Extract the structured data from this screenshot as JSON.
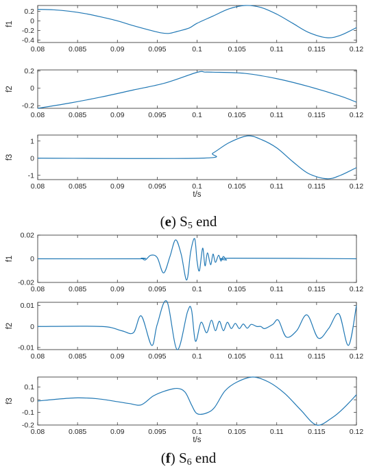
{
  "captions": [
    {
      "prefix": "(",
      "letter": "e",
      "mid": ") S",
      "sub": "5",
      "suffix": " end"
    },
    {
      "prefix": "(",
      "letter": "f",
      "mid": ") S",
      "sub": "6",
      "suffix": " end"
    }
  ],
  "colors": {
    "line": "#1f77b4",
    "axes": "#262626",
    "tick_text": "#262626"
  },
  "chart_data": [
    {
      "type": "line",
      "xlabel": "",
      "ylabel": "f1",
      "xlim": [
        0.08,
        0.12
      ],
      "ylim": [
        -0.45,
        0.32
      ],
      "xticks": [
        "0.08",
        "0.085",
        "0.09",
        "0.095",
        "0.1",
        "0.105",
        "0.11",
        "0.115",
        "0.12"
      ],
      "yticks": [
        "0.2",
        "0",
        "-0.2",
        "-0.4"
      ],
      "series": [
        {
          "x": [
            0.08,
            0.082,
            0.084,
            0.086,
            0.088,
            0.09,
            0.092,
            0.094,
            0.0955,
            0.0965,
            0.0975,
            0.099,
            0.1,
            0.102,
            0.104,
            0.106,
            0.108,
            0.11,
            0.112,
            0.114,
            0.1163,
            0.118,
            0.12
          ],
          "y": [
            0.24,
            0.23,
            0.2,
            0.15,
            0.08,
            0.0,
            -0.1,
            -0.19,
            -0.25,
            -0.26,
            -0.22,
            -0.15,
            -0.05,
            0.1,
            0.25,
            0.32,
            0.28,
            0.14,
            -0.05,
            -0.24,
            -0.35,
            -0.3,
            -0.14
          ]
        }
      ]
    },
    {
      "type": "line",
      "xlabel": "",
      "ylabel": "f2",
      "xlim": [
        0.08,
        0.12
      ],
      "ylim": [
        -0.23,
        0.21
      ],
      "xticks": [
        "0.08",
        "0.085",
        "0.09",
        "0.095",
        "0.1",
        "0.105",
        "0.11",
        "0.115",
        "0.12"
      ],
      "yticks": [
        "0.2",
        "0",
        "-0.2"
      ],
      "series": [
        {
          "x": [
            0.08,
            0.084,
            0.088,
            0.092,
            0.096,
            0.1,
            0.101,
            0.102,
            0.106,
            0.11,
            0.114,
            0.118,
            0.12
          ],
          "y": [
            -0.23,
            -0.17,
            -0.1,
            -0.02,
            0.06,
            0.1825,
            0.185,
            0.184,
            0.17,
            0.11,
            0.02,
            -0.09,
            -0.16
          ]
        }
      ]
    },
    {
      "type": "line",
      "xlabel": "t/s",
      "ylabel": "f3",
      "xlim": [
        0.08,
        0.12
      ],
      "ylim": [
        -1.25,
        1.35
      ],
      "xticks": [
        "0.08",
        "0.085",
        "0.09",
        "0.095",
        "0.1",
        "0.105",
        "0.11",
        "0.115",
        "0.12"
      ],
      "yticks": [
        "1",
        "0",
        "-1"
      ],
      "series": [
        {
          "x": [
            0.08,
            0.1005,
            0.102,
            0.104,
            0.1063,
            0.108,
            0.11,
            0.112,
            0.114,
            0.1163,
            0.118,
            0.12
          ],
          "y": [
            0.0,
            0.0,
            0.3,
            0.9,
            1.3,
            1.1,
            0.6,
            -0.2,
            -0.9,
            -1.2,
            -1.0,
            -0.55
          ]
        }
      ]
    },
    {
      "type": "line",
      "xlabel": "",
      "ylabel": "f1",
      "xlim": [
        0.08,
        0.12
      ],
      "ylim": [
        -0.02,
        0.02
      ],
      "xticks": [
        "0.08",
        "0.085",
        "0.09",
        "0.095",
        "0.1",
        "0.105",
        "0.11",
        "0.115",
        "0.12"
      ],
      "yticks": [
        "0.02",
        "0",
        "-0.02"
      ],
      "series": [
        {
          "x": [
            0.08,
            0.0925,
            0.093,
            0.0935,
            0.0942,
            0.095,
            0.0958,
            0.0966,
            0.0973,
            0.098,
            0.0987,
            0.0992,
            0.0997,
            0.1,
            0.1003,
            0.1007,
            0.101,
            0.1013,
            0.1017,
            0.102,
            0.1023,
            0.1027,
            0.103,
            0.1033,
            0.1037,
            0.1042,
            0.12
          ],
          "y": [
            0.0,
            0.0,
            0.0005,
            -0.001,
            0.003,
            0.001,
            -0.012,
            0.002,
            0.016,
            0.004,
            -0.018,
            0.006,
            0.017,
            -0.002,
            -0.01,
            0.009,
            -0.006,
            0.005,
            -0.005,
            0.004,
            -0.003,
            0.003,
            -0.002,
            0.002,
            -0.001,
            0.0005,
            0.0
          ]
        }
      ]
    },
    {
      "type": "line",
      "xlabel": "",
      "ylabel": "f2",
      "xlim": [
        0.08,
        0.12
      ],
      "ylim": [
        -0.011,
        0.0115
      ],
      "xticks": [
        "0.08",
        "0.085",
        "0.09",
        "0.095",
        "0.1",
        "0.105",
        "0.11",
        "0.115",
        "0.12"
      ],
      "yticks": [
        "0.01",
        "0",
        "-0.01"
      ],
      "series": [
        {
          "x": [
            0.08,
            0.088,
            0.0905,
            0.092,
            0.093,
            0.0943,
            0.095,
            0.0962,
            0.0975,
            0.0988,
            0.0993,
            0.0998,
            0.1005,
            0.1012,
            0.1018,
            0.1023,
            0.1028,
            0.1033,
            0.1038,
            0.1043,
            0.1048,
            0.1053,
            0.1058,
            0.1063,
            0.1068,
            0.1075,
            0.108,
            0.1085,
            0.1095,
            0.1102,
            0.1112,
            0.1125,
            0.1138,
            0.1152,
            0.1165,
            0.1178,
            0.119,
            0.12
          ],
          "y": [
            0.0,
            0.0,
            -0.002,
            -0.003,
            0.005,
            -0.009,
            0.001,
            0.012,
            -0.011,
            0.007,
            0.008,
            -0.007,
            0.002,
            -0.003,
            0.003,
            -0.002,
            0.0025,
            -0.002,
            0.002,
            -0.001,
            0.0015,
            -0.001,
            0.0012,
            -0.0008,
            0.001,
            0.0,
            0.0,
            -0.001,
            0.001,
            0.003,
            -0.005,
            -0.002,
            0.0055,
            -0.0055,
            -0.001,
            0.006,
            -0.009,
            0.01
          ]
        }
      ]
    },
    {
      "type": "line",
      "xlabel": "t/s",
      "ylabel": "f3",
      "xlim": [
        0.08,
        0.12
      ],
      "ylim": [
        -0.2,
        0.18
      ],
      "xticks": [
        "0.08",
        "0.085",
        "0.09",
        "0.095",
        "0.1",
        "0.105",
        "0.11",
        "0.115",
        "0.12"
      ],
      "yticks": [
        "0.1",
        "0",
        "-0.1",
        "-0.2"
      ],
      "series": [
        {
          "x": [
            0.08,
            0.0825,
            0.085,
            0.0875,
            0.09,
            0.0915,
            0.093,
            0.0945,
            0.096,
            0.0975,
            0.0985,
            0.0993,
            0.1,
            0.1012,
            0.1022,
            0.1035,
            0.105,
            0.107,
            0.109,
            0.111,
            0.113,
            0.115,
            0.117,
            0.1185,
            0.12
          ],
          "y": [
            -0.01,
            0.005,
            0.015,
            0.008,
            -0.015,
            -0.03,
            -0.04,
            0.03,
            0.07,
            0.09,
            0.06,
            -0.04,
            -0.11,
            -0.105,
            -0.06,
            0.07,
            0.14,
            0.18,
            0.14,
            0.05,
            -0.08,
            -0.2,
            -0.14,
            -0.06,
            0.04
          ]
        }
      ]
    }
  ]
}
